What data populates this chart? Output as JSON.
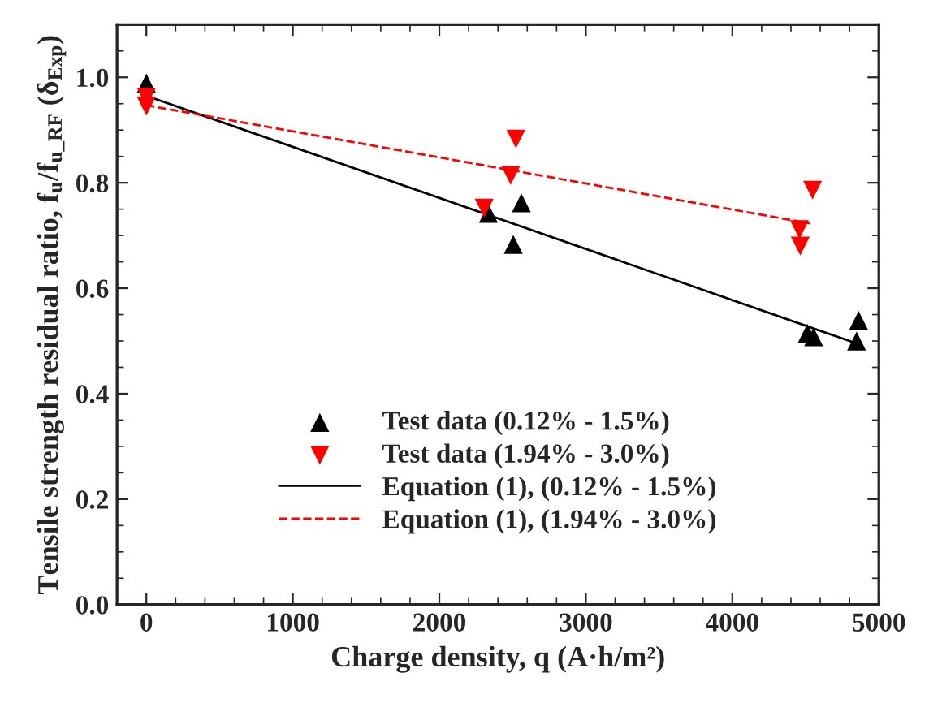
{
  "chart_data": {
    "type": "scatter",
    "xlabel": "Charge density, q (A·h/m²)",
    "ylabel": "Tensile strength residual ratio, f$_{u}$/f$_{u_RF}$ (δ$_{Exp}$)",
    "xlim": [
      -200,
      5000
    ],
    "xticks": [
      0,
      1000,
      2000,
      3000,
      4000,
      5000
    ],
    "ylim": [
      0,
      1.1
    ],
    "yticks": [
      {
        "value": 0,
        "label": "0.0"
      },
      {
        "value": 0.2,
        "label": "0.2"
      },
      {
        "value": 0.4,
        "label": "0.4"
      },
      {
        "value": 0.6,
        "label": "0.6"
      },
      {
        "value": 0.8,
        "label": "0.8"
      },
      {
        "value": 1,
        "label": "1.0"
      }
    ],
    "grid": false,
    "legend": "bottom",
    "series": [
      {
        "name": "Test data (0.12% - 1.5%)",
        "marker": "triangle",
        "color": "#000000",
        "x": [
          0,
          2335,
          2505,
          2560,
          4512,
          4555,
          4862,
          4848
        ],
        "values": [
          0.989,
          0.742,
          0.683,
          0.762,
          0.515,
          0.508,
          0.539,
          0.5
        ]
      },
      {
        "name": "Test data (1.94% - 3.0%)",
        "marker": "triangle_down",
        "color": "#ff0000",
        "x": [
          0,
          0,
          2306,
          2487,
          2523,
          4458,
          4464,
          4548
        ],
        "values": [
          0.962,
          0.945,
          0.752,
          0.814,
          0.883,
          0.711,
          0.68,
          0.786
        ]
      },
      {
        "name": "Equation (1), (0.12% - 1.5%)",
        "type": "line",
        "line_style": "solid",
        "color": "#000000",
        "x": [
          0,
          4852
        ],
        "values": [
          0.965,
          0.495
        ]
      },
      {
        "name": "Equation (1), (1.94% - 3.0%)",
        "type": "line",
        "line_style": "dashed",
        "color": "#ff0000",
        "x": [
          0,
          4530
        ],
        "values": [
          0.947,
          0.723
        ]
      }
    ]
  }
}
